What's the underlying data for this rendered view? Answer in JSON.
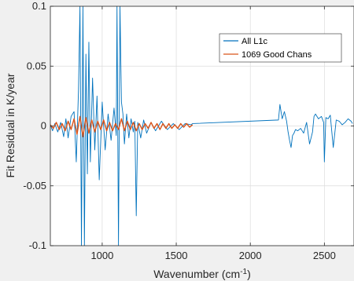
{
  "chart_data": {
    "type": "line",
    "title": "",
    "xlabel": "Wavenumber (cm",
    "xlabel_sup": "-1",
    "xlabel_close": ")",
    "ylabel": "Fit Residual in K/year",
    "xlim": [
      650,
      2700
    ],
    "ylim": [
      -0.1,
      0.1
    ],
    "xticks": [
      1000,
      1500,
      2000,
      2500
    ],
    "xtick_labels": [
      "1000",
      "1500",
      "2000",
      "2500"
    ],
    "yticks": [
      -0.1,
      -0.05,
      0,
      0.05,
      0.1
    ],
    "ytick_labels": [
      "-0.1",
      "-0.05",
      "0",
      "0.05",
      "0.1"
    ],
    "grid": true,
    "legend_position": "top-right",
    "series": [
      {
        "name": "All L1c",
        "color": "#0072bd",
        "x": [
          650,
          665,
          680,
          700,
          720,
          740,
          755,
          770,
          790,
          810,
          825,
          840,
          850,
          860,
          870,
          880,
          890,
          900,
          910,
          920,
          935,
          950,
          965,
          980,
          1000,
          1020,
          1040,
          1060,
          1080,
          1095,
          1100,
          1110,
          1120,
          1130,
          1140,
          1150,
          1165,
          1180,
          1195,
          1210,
          1220,
          1230,
          1240,
          1260,
          1280,
          1300,
          1330,
          1360,
          1400,
          1440,
          1480,
          1520,
          1560,
          1600,
          1610,
          2190,
          2200,
          2215,
          2230,
          2245,
          2255,
          2265,
          2275,
          2285,
          2295,
          2305,
          2320,
          2340,
          2360,
          2380,
          2400,
          2420,
          2430,
          2440,
          2460,
          2480,
          2495,
          2500,
          2510,
          2525,
          2540,
          2560,
          2580,
          2600,
          2620,
          2640,
          2660,
          2680,
          2690
        ],
        "y": [
          0.001,
          -0.004,
          0.002,
          -0.005,
          0.003,
          -0.009,
          0.006,
          -0.01,
          0.008,
          0.012,
          -0.03,
          0.03,
          0.1,
          -0.1,
          0.1,
          -0.1,
          0.06,
          -0.04,
          0.07,
          -0.03,
          0.04,
          -0.02,
          0.025,
          -0.045,
          0.02,
          -0.02,
          0.01,
          -0.012,
          0.015,
          -0.008,
          0.1,
          -0.1,
          0.1,
          0.02,
          0.01,
          -0.015,
          0.01,
          -0.01,
          0.006,
          -0.005,
          0.004,
          -0.075,
          0.003,
          -0.01,
          0.005,
          -0.006,
          0.003,
          -0.004,
          0.004,
          -0.003,
          0.002,
          -0.003,
          0.002,
          0.001,
          0.002,
          0.005,
          0.018,
          0.006,
          0.012,
          0.004,
          -0.005,
          -0.012,
          -0.018,
          -0.008,
          -0.006,
          -0.003,
          -0.004,
          -0.002,
          -0.006,
          0.003,
          -0.015,
          -0.005,
          0.008,
          0.01,
          0.006,
          0.008,
          0.003,
          -0.03,
          0.007,
          0.006,
          0.009,
          -0.018,
          0.005,
          0.004,
          0.001,
          0.003,
          0.006,
          0.004,
          0.002
        ]
      },
      {
        "name": "1069 Good Chans",
        "color": "#d95319",
        "x": [
          650,
          670,
          690,
          710,
          730,
          750,
          770,
          790,
          810,
          830,
          850,
          870,
          890,
          910,
          930,
          950,
          970,
          990,
          1010,
          1030,
          1050,
          1070,
          1090,
          1110,
          1130,
          1150,
          1170,
          1190,
          1210,
          1230,
          1250,
          1270,
          1290,
          1310,
          1330,
          1350,
          1370,
          1390,
          1410,
          1430,
          1450,
          1470,
          1490,
          1510,
          1530,
          1550,
          1570,
          1590,
          1610
        ],
        "y": [
          0.001,
          -0.002,
          0.003,
          -0.003,
          0.002,
          -0.004,
          0.004,
          -0.003,
          0.006,
          -0.007,
          0.008,
          -0.009,
          0.007,
          -0.006,
          0.005,
          -0.005,
          0.004,
          -0.003,
          0.005,
          -0.004,
          0.003,
          -0.004,
          0.002,
          -0.003,
          0.006,
          -0.004,
          0.004,
          -0.003,
          0.003,
          -0.004,
          0.002,
          -0.003,
          0.002,
          -0.002,
          0.003,
          -0.002,
          0.002,
          -0.003,
          0.002,
          -0.002,
          0.002,
          -0.002,
          0.001,
          -0.002,
          0.002,
          -0.001,
          0.002,
          -0.001,
          0.001
        ]
      }
    ]
  }
}
